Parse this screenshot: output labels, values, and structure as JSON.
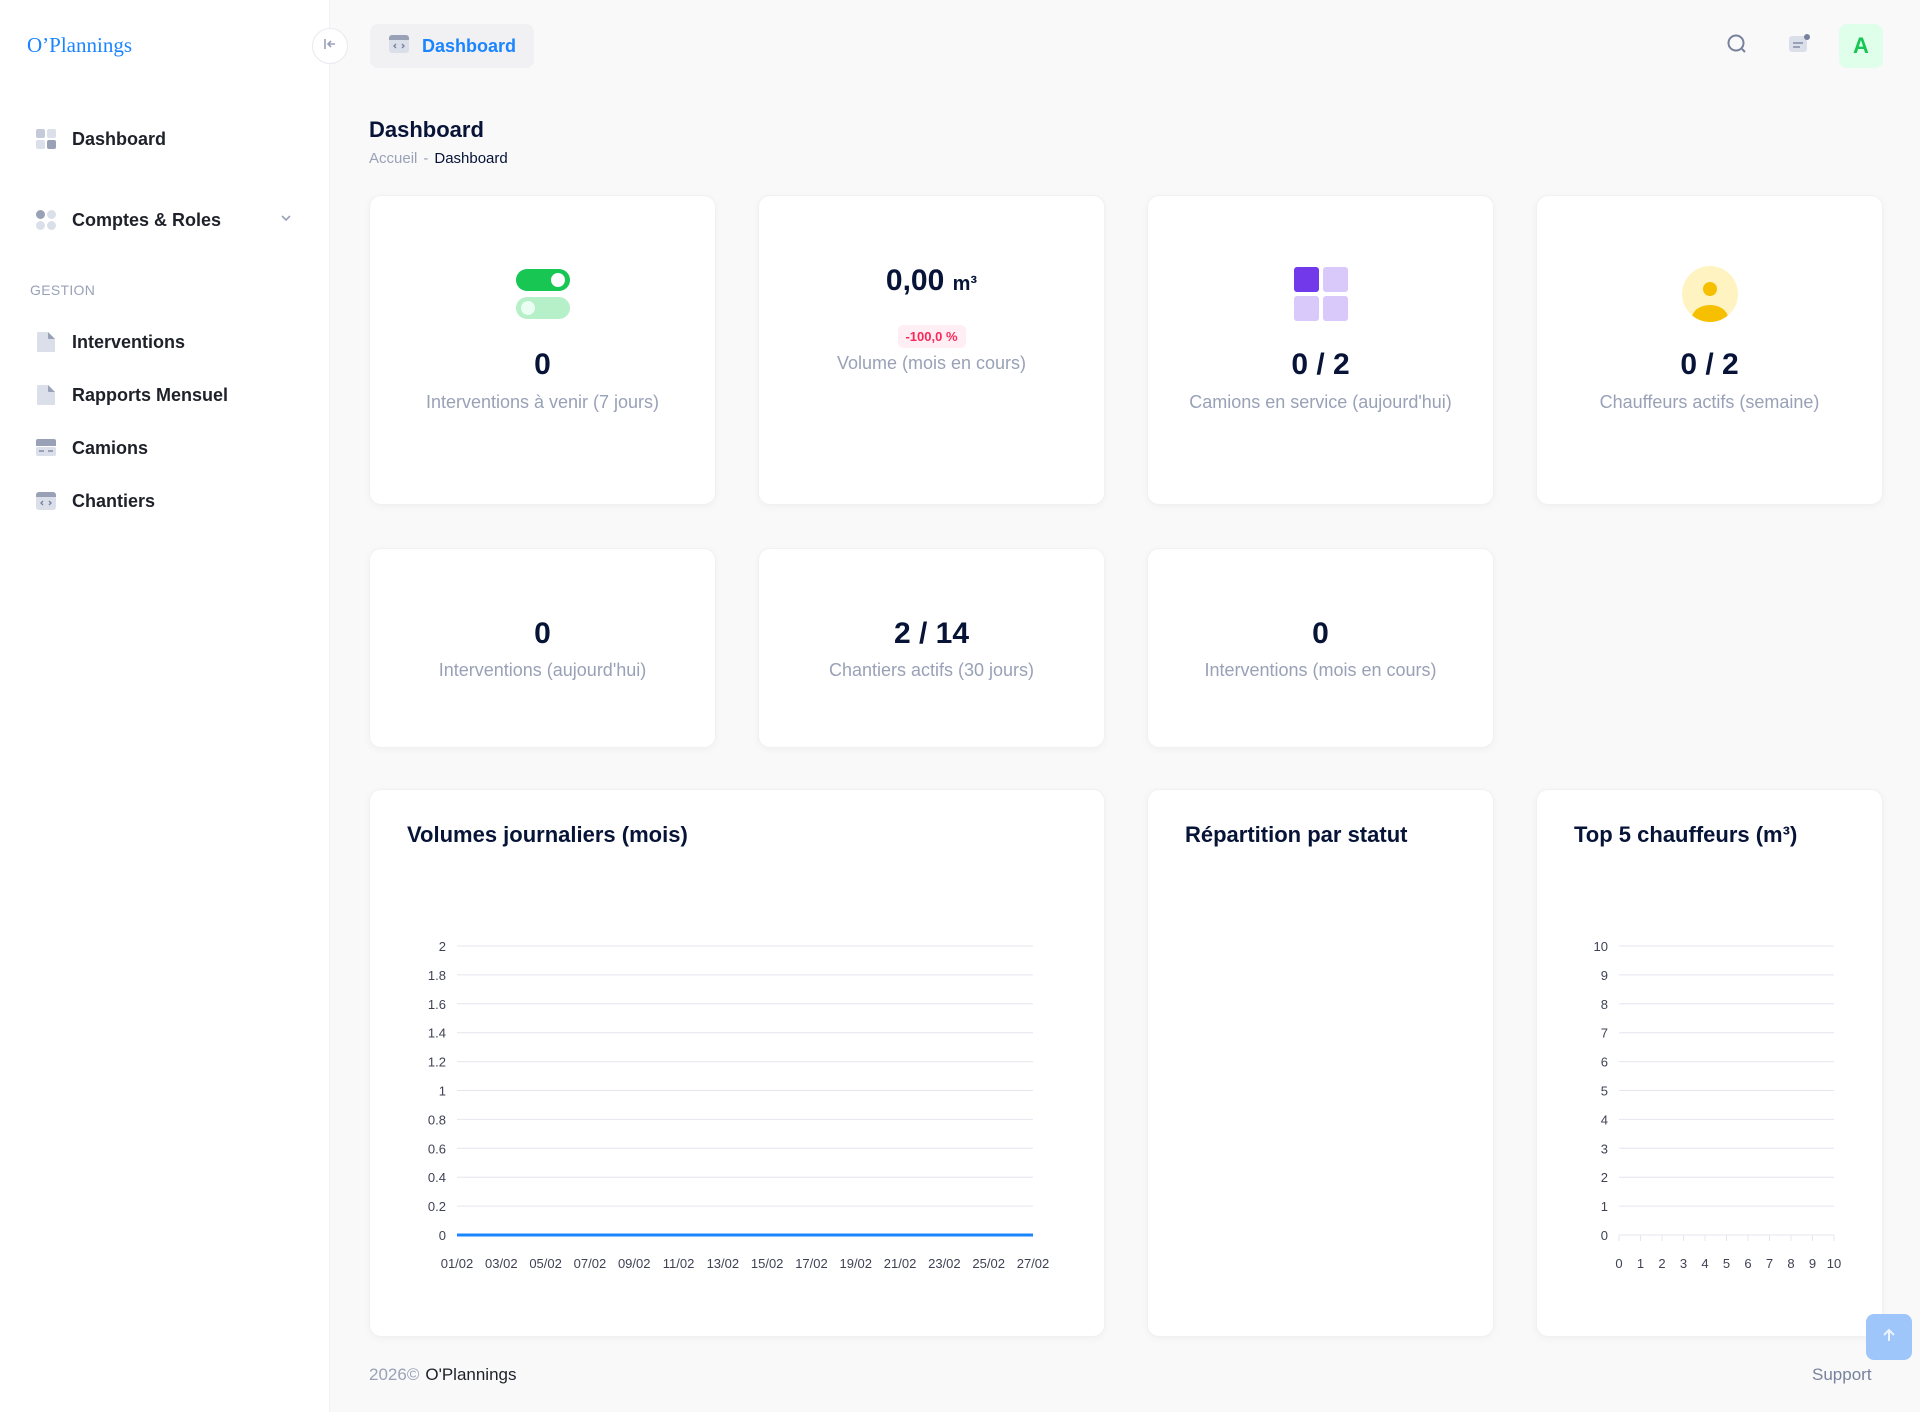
{
  "app": {
    "logo": "O’Plannings"
  },
  "sidebar": {
    "items": [
      {
        "label": "Dashboard",
        "icon": "dashboard-grid-icon"
      },
      {
        "label": "Comptes & Roles",
        "icon": "users-dots-icon"
      }
    ],
    "section": "GESTION",
    "gestion_items": [
      {
        "label": "Interventions",
        "icon": "document-icon"
      },
      {
        "label": "Rapports Mensuel",
        "icon": "document-icon"
      },
      {
        "label": "Camions",
        "icon": "truck-icon"
      },
      {
        "label": "Chantiers",
        "icon": "code-window-icon"
      }
    ]
  },
  "header": {
    "tab_label": "Dashboard",
    "avatar_initial": "A"
  },
  "page": {
    "title": "Dashboard",
    "breadcrumb": {
      "home": "Accueil",
      "separator": "-",
      "current": "Dashboard"
    }
  },
  "stats": {
    "upcoming": {
      "value": "0",
      "label": "Interventions à venir (7 jours)"
    },
    "volume": {
      "value": "0,00",
      "unit": "m³",
      "badge": "-100,0 %",
      "label": "Volume (mois en cours)"
    },
    "trucks": {
      "value": "0 / 2",
      "label": "Camions en service (aujourd'hui)"
    },
    "drivers": {
      "value": "0 / 2",
      "label": "Chauffeurs actifs (semaine)"
    },
    "today": {
      "value": "0",
      "label": "Interventions (aujourd'hui)"
    },
    "sites": {
      "value": "2 / 14",
      "label": "Chantiers actifs (30 jours)"
    },
    "month": {
      "value": "0",
      "label": "Interventions (mois en cours)"
    }
  },
  "chart_titles": {
    "daily": "Volumes journaliers (mois)",
    "status": "Répartition par statut",
    "top": "Top 5 chauffeurs (m³)"
  },
  "chart_data": [
    {
      "type": "line",
      "title": "Volumes journaliers (mois)",
      "x": [
        "01/02",
        "03/02",
        "05/02",
        "07/02",
        "09/02",
        "11/02",
        "13/02",
        "15/02",
        "17/02",
        "19/02",
        "21/02",
        "23/02",
        "25/02",
        "27/02"
      ],
      "series": [
        {
          "values": [
            0,
            0,
            0,
            0,
            0,
            0,
            0,
            0,
            0,
            0,
            0,
            0,
            0,
            0
          ]
        }
      ],
      "y_ticks": [
        "0",
        "0.2",
        "0.4",
        "0.6",
        "0.8",
        "1",
        "1.2",
        "1.4",
        "1.6",
        "1.8",
        "2"
      ],
      "ylim": [
        0,
        2
      ],
      "grid": true,
      "color": "#1b84ff"
    },
    {
      "type": "pie",
      "title": "Répartition par statut",
      "series": []
    },
    {
      "type": "bar",
      "title": "Top 5 chauffeurs (m³)",
      "x_ticks": [
        "0",
        "1",
        "2",
        "3",
        "4",
        "5",
        "6",
        "7",
        "8",
        "9",
        "10"
      ],
      "y_ticks": [
        "0",
        "1",
        "2",
        "3",
        "4",
        "5",
        "6",
        "7",
        "8",
        "9",
        "10"
      ],
      "values": [],
      "ylim": [
        0,
        10
      ],
      "grid": true
    }
  ],
  "footer": {
    "year": "2026©",
    "brand": "O'Plannings",
    "support": "Support"
  },
  "colors": {
    "primary": "#1b84ff",
    "success": "#17c653",
    "danger": "#f8285a",
    "warning": "#f6c000",
    "purple": "#7239ea"
  }
}
